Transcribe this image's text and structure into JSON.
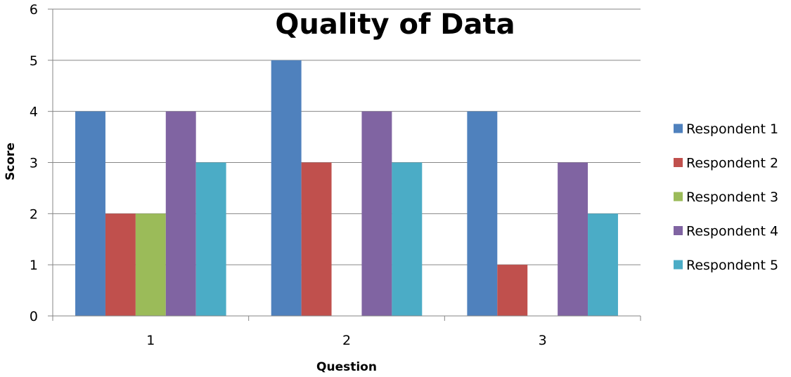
{
  "chart_data": {
    "type": "bar",
    "title": "Quality of Data",
    "xlabel": "Question",
    "ylabel": "Score",
    "categories": [
      "1",
      "2",
      "3"
    ],
    "ylim": [
      0,
      6
    ],
    "yticks": [
      "0",
      "1",
      "2",
      "3",
      "4",
      "5",
      "6"
    ],
    "grid": true,
    "legend_position": "right",
    "series": [
      {
        "name": "Respondent 1",
        "color": "#4F81BD",
        "values": [
          4,
          5,
          4
        ]
      },
      {
        "name": "Respondent 2",
        "color": "#C0504D",
        "values": [
          2,
          3,
          1
        ]
      },
      {
        "name": "Respondent 3",
        "color": "#9BBB59",
        "values": [
          2,
          0,
          0
        ]
      },
      {
        "name": "Respondent 4",
        "color": "#8064A2",
        "values": [
          4,
          4,
          3
        ]
      },
      {
        "name": "Respondent 5",
        "color": "#4BACC6",
        "values": [
          3,
          3,
          2
        ]
      }
    ]
  }
}
